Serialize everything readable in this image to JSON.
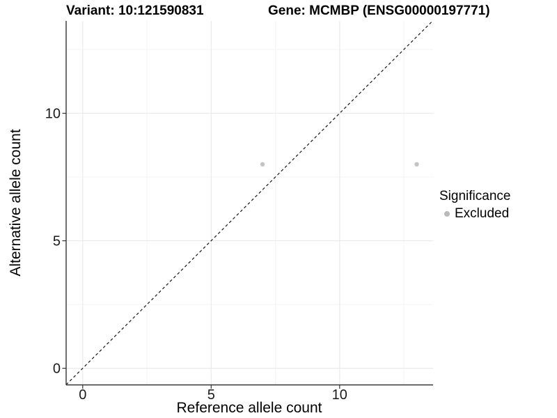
{
  "title": {
    "variant": "Variant: 10:121590831",
    "gene": "Gene: MCMBP (ENSG00000197771)"
  },
  "axes": {
    "x": {
      "label": "Reference allele count",
      "ticks": [
        {
          "value": 0,
          "label": "0"
        },
        {
          "value": 5,
          "label": "5"
        },
        {
          "value": 10,
          "label": "10"
        }
      ],
      "minor_ticks": [
        2.5,
        7.5,
        12.5
      ]
    },
    "y": {
      "label": "Alternative allele count",
      "ticks": [
        {
          "value": 0,
          "label": "0"
        },
        {
          "value": 5,
          "label": "5"
        },
        {
          "value": 10,
          "label": "10"
        }
      ],
      "minor_ticks": [
        2.5,
        7.5,
        12.5
      ]
    }
  },
  "legend": {
    "title": "Significance",
    "items": [
      {
        "label": "Excluded",
        "color": "#b9b9b9"
      }
    ]
  },
  "chart_data": {
    "type": "scatter",
    "title": "Variant: 10:121590831   Gene: MCMBP (ENSG00000197771)",
    "xlabel": "Reference allele count",
    "ylabel": "Alternative allele count",
    "xlim": [
      -0.65,
      13.65
    ],
    "ylim": [
      -0.65,
      13.65
    ],
    "grid": true,
    "legend_position": "right",
    "series": [
      {
        "name": "Excluded",
        "color": "#c4c4c4",
        "points": [
          {
            "x": 7,
            "y": 8
          },
          {
            "x": 13,
            "y": 8
          }
        ]
      }
    ],
    "reference_line": {
      "style": "dashed",
      "equation": "y = x",
      "color": "#141414"
    }
  },
  "colors": {
    "background": "#ffffff",
    "grid_major": "#e9e9e9",
    "grid_minor": "#f4f4f4",
    "axis": "#333333",
    "point": "#c4c4c4"
  }
}
